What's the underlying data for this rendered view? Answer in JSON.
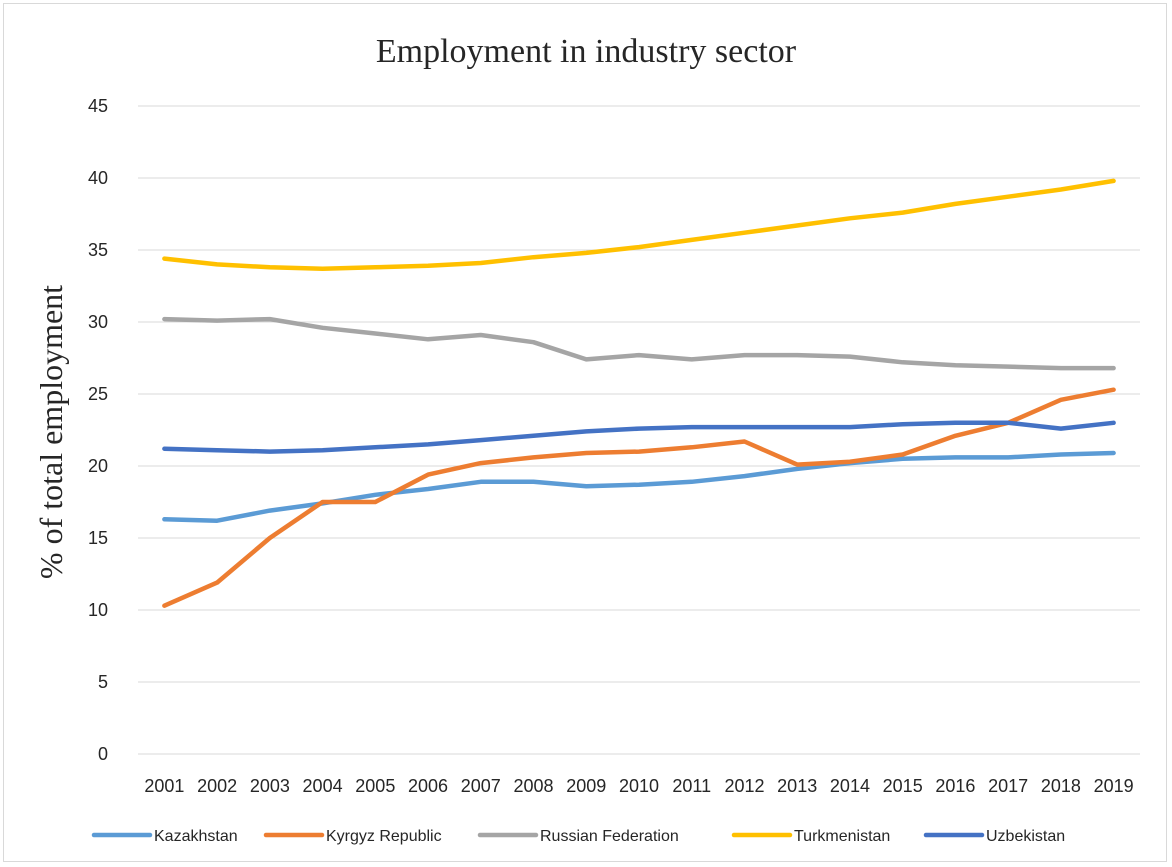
{
  "chart_data": {
    "type": "line",
    "title": "Employment in industry sector",
    "xlabel": "",
    "ylabel": "% of total employment",
    "ylim": [
      0,
      45
    ],
    "ytick_values": [
      0,
      5,
      10,
      15,
      20,
      25,
      30,
      35,
      40,
      45
    ],
    "ytick_labels": [
      "0",
      "5",
      "10",
      "15",
      "20",
      "25",
      "30",
      "35",
      "40",
      "45"
    ],
    "grid": true,
    "legend_position": "bottom",
    "categories": [
      "2001",
      "2002",
      "2003",
      "2004",
      "2005",
      "2006",
      "2007",
      "2008",
      "2009",
      "2010",
      "2011",
      "2012",
      "2013",
      "2014",
      "2015",
      "2016",
      "2017",
      "2018",
      "2019"
    ],
    "series": [
      {
        "name": "Kazakhstan",
        "color": "#5B9BD5",
        "values": [
          16.3,
          16.2,
          16.9,
          17.4,
          18.0,
          18.4,
          18.9,
          18.9,
          18.6,
          18.7,
          18.9,
          19.3,
          19.8,
          20.2,
          20.5,
          20.6,
          20.6,
          20.8,
          20.9
        ]
      },
      {
        "name": "Kyrgyz Republic",
        "color": "#ED7D31",
        "values": [
          10.3,
          11.9,
          15.0,
          17.5,
          17.5,
          19.4,
          20.2,
          20.6,
          20.9,
          21.0,
          21.3,
          21.7,
          20.1,
          20.3,
          20.8,
          22.1,
          23.0,
          24.6,
          25.3
        ]
      },
      {
        "name": "Russian Federation",
        "color": "#A5A5A5",
        "values": [
          30.2,
          30.1,
          30.2,
          29.6,
          29.2,
          28.8,
          29.1,
          28.6,
          27.4,
          27.7,
          27.4,
          27.7,
          27.7,
          27.6,
          27.2,
          27.0,
          26.9,
          26.8,
          26.8
        ]
      },
      {
        "name": "Turkmenistan",
        "color": "#FFC000",
        "values": [
          34.4,
          34.0,
          33.8,
          33.7,
          33.8,
          33.9,
          34.1,
          34.5,
          34.8,
          35.2,
          35.7,
          36.2,
          36.7,
          37.2,
          37.6,
          38.2,
          38.7,
          39.2,
          39.8
        ]
      },
      {
        "name": "Uzbekistan",
        "color": "#4472C4",
        "values": [
          21.2,
          21.1,
          21.0,
          21.1,
          21.3,
          21.5,
          21.8,
          22.1,
          22.4,
          22.6,
          22.7,
          22.7,
          22.7,
          22.7,
          22.9,
          23.0,
          23.0,
          22.6,
          23.0
        ]
      }
    ]
  }
}
